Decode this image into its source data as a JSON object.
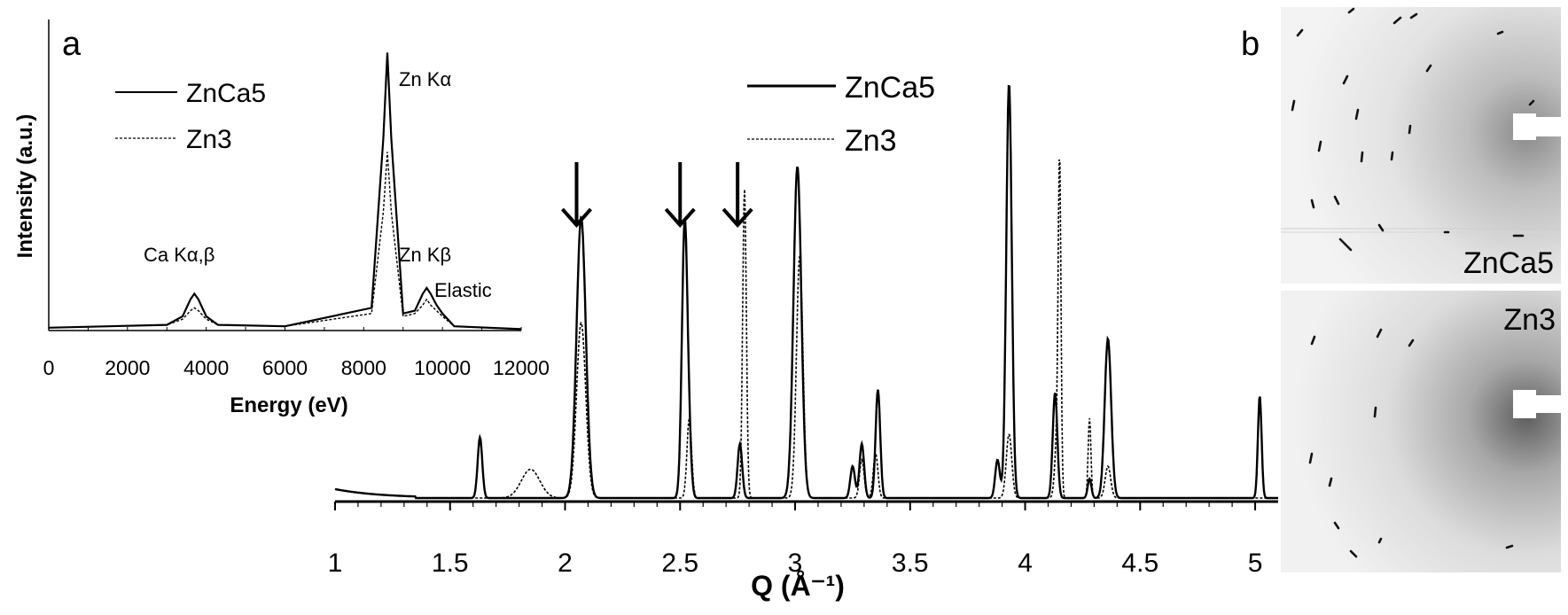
{
  "panels": {
    "a_label": "a",
    "b_label": "b"
  },
  "chart_data": [
    {
      "type": "line",
      "panel": "a",
      "xlabel": "Energy (eV)",
      "ylabel": "Intensity (a.u.)",
      "xlim": [
        0,
        12000
      ],
      "x_ticks": [
        "0",
        "2000",
        "4000",
        "6000",
        "8000",
        "10000",
        "12000"
      ],
      "grid": false,
      "legend_position": "top-left",
      "annotations": {
        "ca": "Ca Kα,β",
        "zn_ka": "Zn Kα",
        "zn_kb": "Zn Kβ",
        "elastic": "Elastic"
      },
      "series": [
        {
          "name": "ZnCa5",
          "style": "solid",
          "x": [
            0,
            3000,
            3400,
            3600,
            3700,
            3800,
            4000,
            4300,
            6000,
            8200,
            8500,
            8600,
            8700,
            9000,
            9300,
            9500,
            9600,
            9700,
            9850,
            10000,
            10300,
            12000
          ],
          "y": [
            0.01,
            0.02,
            0.05,
            0.11,
            0.13,
            0.11,
            0.05,
            0.02,
            0.015,
            0.08,
            0.68,
            0.98,
            0.68,
            0.06,
            0.07,
            0.13,
            0.15,
            0.13,
            0.09,
            0.06,
            0.015,
            0.005
          ]
        },
        {
          "name": "Zn3",
          "style": "dashed",
          "x": [
            0,
            3000,
            3400,
            3600,
            3700,
            3800,
            4000,
            4300,
            6000,
            8200,
            8500,
            8600,
            8700,
            9000,
            9300,
            9500,
            9600,
            9700,
            9850,
            10000,
            10300,
            12000
          ],
          "y": [
            0.01,
            0.02,
            0.04,
            0.07,
            0.08,
            0.07,
            0.04,
            0.02,
            0.015,
            0.06,
            0.42,
            0.63,
            0.42,
            0.05,
            0.06,
            0.09,
            0.11,
            0.09,
            0.07,
            0.05,
            0.015,
            0.005
          ]
        }
      ]
    },
    {
      "type": "line",
      "panel": "main",
      "xlabel": "Q (Å⁻¹)",
      "ylabel": "",
      "xlim": [
        1,
        5.1
      ],
      "x_ticks": [
        "1",
        "1.5",
        "2",
        "2.5",
        "3",
        "3.5",
        "4",
        "4.5",
        "5"
      ],
      "grid": false,
      "legend_position": "top-center",
      "arrows_at_q": [
        2.05,
        2.5,
        2.75
      ],
      "series": [
        {
          "name": "ZnCa5",
          "style": "solid",
          "peaks": [
            {
              "q": 1.63,
              "h": 0.19,
              "w": 0.01
            },
            {
              "q": 2.07,
              "h": 0.88,
              "w": 0.02
            },
            {
              "q": 2.52,
              "h": 0.86,
              "w": 0.012
            },
            {
              "q": 2.54,
              "h": 0.12,
              "w": 0.01
            },
            {
              "q": 2.76,
              "h": 0.17,
              "w": 0.01
            },
            {
              "q": 3.01,
              "h": 1.04,
              "w": 0.017
            },
            {
              "q": 3.25,
              "h": 0.1,
              "w": 0.01
            },
            {
              "q": 3.29,
              "h": 0.17,
              "w": 0.01
            },
            {
              "q": 3.36,
              "h": 0.34,
              "w": 0.01
            },
            {
              "q": 3.88,
              "h": 0.12,
              "w": 0.01
            },
            {
              "q": 3.93,
              "h": 1.3,
              "w": 0.012
            },
            {
              "q": 4.13,
              "h": 0.33,
              "w": 0.01
            },
            {
              "q": 4.28,
              "h": 0.06,
              "w": 0.008
            },
            {
              "q": 4.36,
              "h": 0.5,
              "w": 0.014
            },
            {
              "q": 5.02,
              "h": 0.32,
              "w": 0.008
            }
          ]
        },
        {
          "name": "Zn3",
          "style": "dashed",
          "peaks": [
            {
              "q": 1.85,
              "h": 0.09,
              "w": 0.04
            },
            {
              "q": 2.07,
              "h": 0.55,
              "w": 0.02
            },
            {
              "q": 2.54,
              "h": 0.25,
              "w": 0.01
            },
            {
              "q": 2.78,
              "h": 0.97,
              "w": 0.008
            },
            {
              "q": 3.02,
              "h": 0.76,
              "w": 0.014
            },
            {
              "q": 3.29,
              "h": 0.12,
              "w": 0.01
            },
            {
              "q": 3.35,
              "h": 0.14,
              "w": 0.01
            },
            {
              "q": 3.93,
              "h": 0.2,
              "w": 0.012
            },
            {
              "q": 4.14,
              "h": 0.2,
              "w": 0.01
            },
            {
              "q": 4.15,
              "h": 0.96,
              "w": 0.006
            },
            {
              "q": 4.28,
              "h": 0.25,
              "w": 0.006
            },
            {
              "q": 4.36,
              "h": 0.1,
              "w": 0.012
            }
          ]
        }
      ]
    }
  ],
  "images": {
    "top_label": "ZnCa5",
    "bottom_label": "Zn3"
  }
}
